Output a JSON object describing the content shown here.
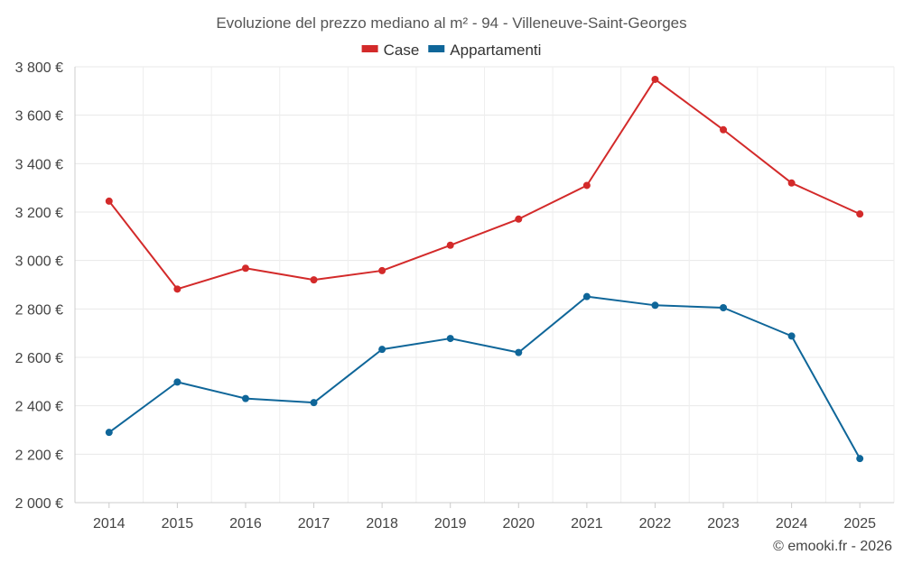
{
  "chart_data": {
    "type": "line",
    "title": "Evoluzione del prezzo mediano al m² - 94 - Villeneuve-Saint-Georges",
    "categories": [
      "2014",
      "2015",
      "2016",
      "2017",
      "2018",
      "2019",
      "2020",
      "2021",
      "2022",
      "2023",
      "2024",
      "2025"
    ],
    "series": [
      {
        "name": "Case",
        "color": "#d32a2a",
        "values": [
          3245,
          2882,
          2968,
          2920,
          2958,
          3063,
          3171,
          3310,
          3748,
          3540,
          3320,
          3192
        ]
      },
      {
        "name": "Appartamenti",
        "color": "#0f6699",
        "values": [
          2290,
          2498,
          2430,
          2413,
          2633,
          2678,
          2620,
          2851,
          2815,
          2805,
          2688,
          2182
        ]
      }
    ],
    "ylim": [
      2000,
      3800
    ],
    "yticks": [
      2000,
      2200,
      2400,
      2600,
      2800,
      3000,
      3200,
      3400,
      3600,
      3800
    ],
    "ytick_labels": [
      "2 000 €",
      "2 200 €",
      "2 400 €",
      "2 600 €",
      "2 800 €",
      "3 000 €",
      "3 200 €",
      "3 400 €",
      "3 600 €",
      "3 800 €"
    ],
    "xlabel": "",
    "ylabel": "",
    "grid": true,
    "legend": "top-center"
  },
  "credit": "© emooki.fr - 2026"
}
